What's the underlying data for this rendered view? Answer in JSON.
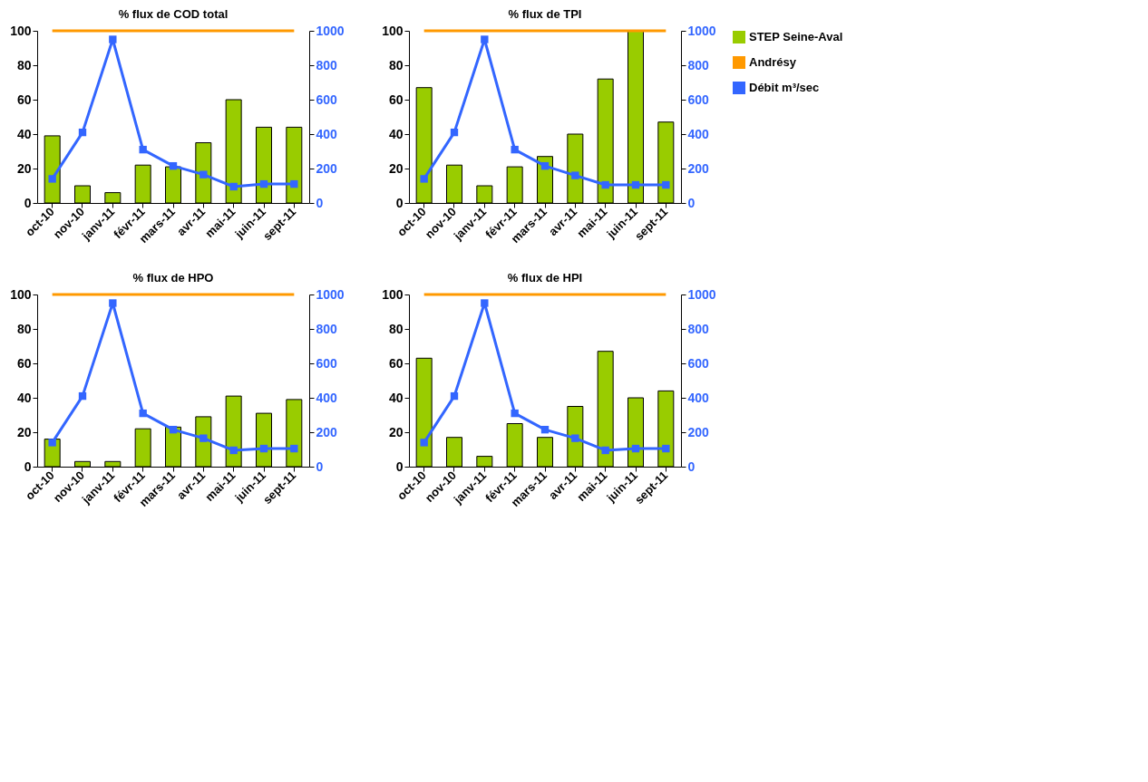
{
  "chart_data": [
    {
      "type": "bar",
      "title": "% flux de COD total",
      "categories": [
        "oct-10",
        "nov-10",
        "janv-11",
        "févr-11",
        "mars-11",
        "avr-11",
        "mai-11",
        "juin-11",
        "sept-11"
      ],
      "ylim": [
        0,
        100
      ],
      "yticks": [
        0,
        20,
        40,
        60,
        80,
        100
      ],
      "y2lim": [
        0,
        1000
      ],
      "y2ticks": [
        0,
        200,
        400,
        600,
        800,
        1000
      ],
      "legend": "right",
      "series": [
        {
          "name": "STEP Seine-Aval",
          "color": "#99cc00",
          "values": [
            39,
            10,
            6,
            22,
            21,
            35,
            60,
            44,
            44
          ]
        },
        {
          "name": "Andrésy",
          "type": "line",
          "color": "#ff9900",
          "values": [
            100,
            100,
            100,
            100,
            100,
            100,
            100,
            100,
            100
          ]
        },
        {
          "name": "Débit m³/sec",
          "type": "line",
          "axis": "y2",
          "marker": "square",
          "color": "#3366ff",
          "values": [
            140,
            410,
            950,
            310,
            215,
            165,
            95,
            110,
            110
          ]
        }
      ]
    },
    {
      "type": "bar",
      "title": "% flux de TPI",
      "categories": [
        "oct-10",
        "nov-10",
        "janv-11",
        "févr-11",
        "mars-11",
        "avr-11",
        "mai-11",
        "juin-11",
        "sept-11"
      ],
      "ylim": [
        0,
        100
      ],
      "yticks": [
        0,
        20,
        40,
        60,
        80,
        100
      ],
      "y2lim": [
        0,
        1000
      ],
      "y2ticks": [
        0,
        200,
        400,
        600,
        800,
        1000
      ],
      "legend": "right",
      "series": [
        {
          "name": "STEP Seine-Aval",
          "color": "#99cc00",
          "values": [
            67,
            22,
            10,
            21,
            27,
            40,
            72,
            100,
            47
          ]
        },
        {
          "name": "Andrésy",
          "type": "line",
          "color": "#ff9900",
          "values": [
            100,
            100,
            100,
            100,
            100,
            100,
            100,
            100,
            100
          ]
        },
        {
          "name": "Débit m³/sec",
          "type": "line",
          "axis": "y2",
          "marker": "square",
          "color": "#3366ff",
          "values": [
            140,
            410,
            950,
            310,
            215,
            160,
            105,
            105,
            105
          ]
        }
      ]
    },
    {
      "type": "bar",
      "title": "% flux de HPO",
      "categories": [
        "oct-10",
        "nov-10",
        "janv-11",
        "févr-11",
        "mars-11",
        "avr-11",
        "mai-11",
        "juin-11",
        "sept-11"
      ],
      "ylim": [
        0,
        100
      ],
      "yticks": [
        0,
        20,
        40,
        60,
        80,
        100
      ],
      "y2lim": [
        0,
        1000
      ],
      "y2ticks": [
        0,
        200,
        400,
        600,
        800,
        1000
      ],
      "legend": "right",
      "series": [
        {
          "name": "STEP Seine-Aval",
          "color": "#99cc00",
          "values": [
            16,
            3,
            3,
            22,
            23,
            29,
            41,
            31,
            39
          ]
        },
        {
          "name": "Andrésy",
          "type": "line",
          "color": "#ff9900",
          "values": [
            100,
            100,
            100,
            100,
            100,
            100,
            100,
            100,
            100
          ]
        },
        {
          "name": "Débit m³/sec",
          "type": "line",
          "axis": "y2",
          "marker": "square",
          "color": "#3366ff",
          "values": [
            140,
            410,
            950,
            310,
            215,
            165,
            95,
            105,
            105
          ]
        }
      ]
    },
    {
      "type": "bar",
      "title": "% flux de HPI",
      "categories": [
        "oct-10",
        "nov-10",
        "janv-11",
        "févr-11",
        "mars-11",
        "avr-11",
        "mai-11",
        "juin-11",
        "sept-11"
      ],
      "ylim": [
        0,
        100
      ],
      "yticks": [
        0,
        20,
        40,
        60,
        80,
        100
      ],
      "y2lim": [
        0,
        1000
      ],
      "y2ticks": [
        0,
        200,
        400,
        600,
        800,
        1000
      ],
      "legend": "right",
      "series": [
        {
          "name": "STEP Seine-Aval",
          "color": "#99cc00",
          "values": [
            63,
            17,
            6,
            25,
            17,
            35,
            67,
            40,
            44
          ]
        },
        {
          "name": "Andrésy",
          "type": "line",
          "color": "#ff9900",
          "values": [
            100,
            100,
            100,
            100,
            100,
            100,
            100,
            100,
            100
          ]
        },
        {
          "name": "Débit m³/sec",
          "type": "line",
          "axis": "y2",
          "marker": "square",
          "color": "#3366ff",
          "values": [
            140,
            410,
            950,
            310,
            215,
            165,
            95,
            105,
            105
          ]
        }
      ]
    }
  ]
}
